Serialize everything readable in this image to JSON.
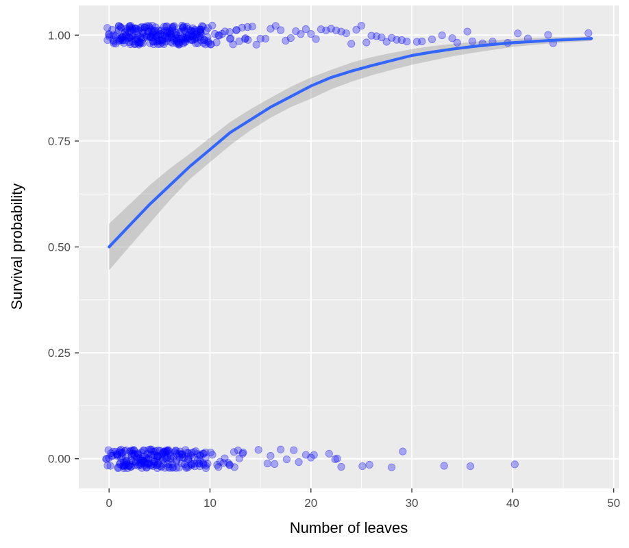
{
  "chart_data": {
    "type": "scatter",
    "title": "",
    "xlabel": "Number of leaves",
    "ylabel": "Survival probability",
    "xlim": [
      -3,
      50.5
    ],
    "ylim": [
      -0.07,
      1.07
    ],
    "x_ticks": [
      0,
      10,
      20,
      30,
      40,
      50
    ],
    "x_tick_labels": [
      "0",
      "10",
      "20",
      "30",
      "40",
      "50"
    ],
    "y_ticks": [
      0,
      0.25,
      0.5,
      0.75,
      1
    ],
    "y_tick_labels": [
      "0.00",
      "0.25",
      "0.50",
      "0.75",
      "1.00"
    ],
    "grid": true,
    "background_color": "#ebebeb",
    "point_color": "#0000ff",
    "fit_color": "#3366ff",
    "ribbon_color": "#999999",
    "point_groups": [
      {
        "y": 1,
        "x": [
          0,
          0.4,
          0.8,
          1.1,
          1.3,
          1.5,
          1.7,
          1.9,
          2.1,
          2.3,
          2.5,
          2.7,
          2.9,
          3.1,
          3.3,
          3.5,
          3.7,
          3.9,
          4.1,
          4.3,
          4.5,
          4.7,
          4.9,
          5.1,
          5.3,
          5.5,
          5.7,
          5.9,
          6.1,
          6.3,
          6.5,
          6.7,
          6.9,
          7.1,
          7.3,
          7.5,
          7.7,
          7.9,
          8.1,
          8.3,
          8.5,
          8.7,
          8.9,
          9.1,
          9.4,
          9.7,
          10,
          10.3,
          10.6,
          11,
          11.4,
          11.8,
          12.2,
          12.6,
          13,
          13.4,
          13.8,
          14.2,
          14.6,
          15,
          15.5,
          16,
          16.5,
          17,
          17.5,
          18,
          18.5,
          19,
          19.5,
          20,
          20.5,
          21,
          21.5,
          22,
          22.5,
          23,
          23.5,
          24,
          24.5,
          25,
          25.5,
          26,
          26.5,
          27,
          27.5,
          28,
          28.5,
          29,
          29.5,
          30.5,
          31,
          32,
          33,
          34,
          34.5,
          35.5,
          36,
          37,
          38,
          39.5,
          40.5,
          41.5,
          43.5,
          44,
          47.5
        ]
      },
      {
        "y": 0,
        "x": [
          -0.2,
          0.3,
          0.7,
          1,
          1.2,
          1.4,
          1.6,
          1.8,
          2,
          2.2,
          2.4,
          2.6,
          2.8,
          3,
          3.2,
          3.4,
          3.6,
          3.8,
          4,
          4.2,
          4.4,
          4.6,
          4.8,
          5,
          5.2,
          5.4,
          5.6,
          5.8,
          6,
          6.2,
          6.5,
          6.8,
          7.1,
          7.4,
          7.7,
          8,
          8.3,
          8.6,
          8.9,
          9.2,
          9.6,
          10.2,
          10.8,
          11.2,
          11.6,
          12.1,
          12.5,
          12.9,
          13.2,
          14.8,
          15.7,
          16,
          16.4,
          17,
          17.6,
          18.3,
          18.8,
          19.5,
          20,
          20.3,
          21.8,
          22.4,
          22.6,
          23,
          25.1,
          25.8,
          28,
          29.1,
          33.2,
          35.8,
          40.2
        ]
      }
    ],
    "fit": {
      "x": [
        0,
        2,
        4,
        6,
        8,
        10,
        12,
        14,
        16,
        18,
        20,
        22,
        24,
        26,
        28,
        30,
        32,
        34,
        36,
        38,
        40,
        42,
        44,
        46,
        47.8
      ],
      "y": [
        0.5,
        0.55,
        0.6,
        0.645,
        0.69,
        0.73,
        0.77,
        0.8,
        0.83,
        0.855,
        0.88,
        0.9,
        0.915,
        0.928,
        0.94,
        0.952,
        0.96,
        0.967,
        0.973,
        0.978,
        0.982,
        0.985,
        0.988,
        0.99,
        0.992
      ],
      "lower": [
        0.445,
        0.5,
        0.555,
        0.61,
        0.66,
        0.7,
        0.74,
        0.775,
        0.805,
        0.83,
        0.85,
        0.872,
        0.89,
        0.905,
        0.918,
        0.93,
        0.94,
        0.95,
        0.958,
        0.965,
        0.972,
        0.977,
        0.981,
        0.984,
        0.986
      ],
      "upper": [
        0.555,
        0.6,
        0.645,
        0.685,
        0.72,
        0.758,
        0.795,
        0.825,
        0.852,
        0.878,
        0.9,
        0.918,
        0.935,
        0.948,
        0.958,
        0.967,
        0.974,
        0.979,
        0.984,
        0.988,
        0.991,
        0.993,
        0.995,
        0.996,
        0.997
      ]
    }
  }
}
